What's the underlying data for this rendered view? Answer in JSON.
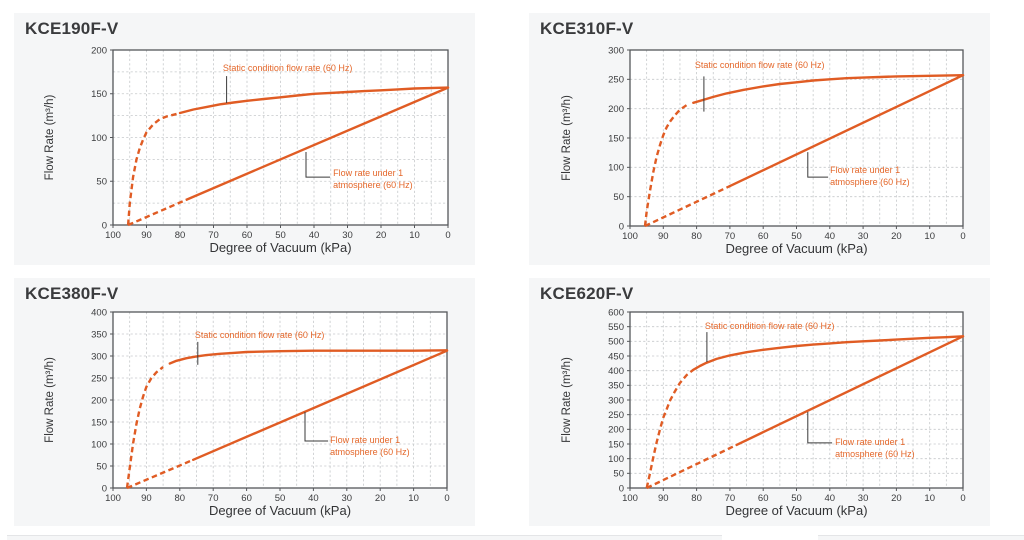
{
  "colors": {
    "curve": "#e05c24",
    "annotation_text": "#e4672a",
    "leader": "#3a3a3a",
    "grid": "#c6c9cb",
    "axis": "#55575a",
    "text": "#3b3c3e",
    "panel_bg": "#f5f6f7",
    "plot_bg": "#ffffff"
  },
  "chart_data": [
    {
      "title": "KCE190F-V",
      "type": "line",
      "xlabel": "Degree of Vacuum (kPa)",
      "ylabel": "Flow Rate (m³/h)",
      "x_axis_reversed": true,
      "xlim": [
        0,
        100
      ],
      "x_ticks": [
        100,
        90,
        80,
        70,
        60,
        50,
        40,
        30,
        20,
        10,
        0
      ],
      "x_grid_step": 5,
      "ylim": [
        0,
        200
      ],
      "y_ticks": [
        0,
        50,
        100,
        150,
        200
      ],
      "y_grid_step": 25,
      "grid": true,
      "series": [
        {
          "name": "Static condition flow rate (60 Hz)",
          "line_style": "dashed-then-solid",
          "dashed_above_kpa": 80,
          "points": [
            [
              95.5,
              0
            ],
            [
              95,
              25
            ],
            [
              94,
              55
            ],
            [
              93,
              75
            ],
            [
              92,
              88
            ],
            [
              91,
              98
            ],
            [
              90,
              106
            ],
            [
              88,
              115
            ],
            [
              86,
              121
            ],
            [
              84,
              124
            ],
            [
              82,
              126
            ],
            [
              80,
              128
            ],
            [
              76,
              132
            ],
            [
              72,
              135
            ],
            [
              68,
              138
            ],
            [
              64,
              140
            ],
            [
              60,
              142
            ],
            [
              55,
              144
            ],
            [
              50,
              146
            ],
            [
              45,
              148
            ],
            [
              40,
              150
            ],
            [
              35,
              151
            ],
            [
              30,
              152
            ],
            [
              25,
              153
            ],
            [
              20,
              154
            ],
            [
              15,
              155
            ],
            [
              10,
              156
            ],
            [
              0,
              157
            ]
          ]
        },
        {
          "name": "Flow rate under 1 atmosphere (60 Hz)",
          "line_style": "dashed-then-solid",
          "dashed_above_kpa": 78,
          "points": [
            [
              95.5,
              0
            ],
            [
              78,
              29
            ],
            [
              0,
              157
            ]
          ]
        }
      ],
      "annotations": [
        {
          "lines": [
            "Static condition flow rate (60 Hz)"
          ],
          "tx": 0.328,
          "ty": 0.074,
          "leader": [
            [
              0.339,
              0.149
            ],
            [
              0.339,
              0.303
            ]
          ]
        },
        {
          "lines": [
            "Flow rate under 1",
            "atmosphere (60 Hz)"
          ],
          "tx": 0.657,
          "ty": 0.674,
          "leader": [
            [
              0.576,
              0.583
            ],
            [
              0.576,
              0.726
            ],
            [
              0.648,
              0.726
            ]
          ]
        }
      ]
    },
    {
      "title": "KCE310F-V",
      "type": "line",
      "xlabel": "Degree of Vacuum (kPa)",
      "ylabel": "Flow Rate (m³/h)",
      "x_axis_reversed": true,
      "xlim": [
        0,
        100
      ],
      "x_ticks": [
        100,
        90,
        80,
        70,
        60,
        50,
        40,
        30,
        20,
        10,
        0
      ],
      "x_grid_step": 5,
      "ylim": [
        0,
        300
      ],
      "y_ticks": [
        0,
        50,
        100,
        150,
        200,
        250,
        300
      ],
      "y_grid_step": 50,
      "grid": true,
      "series": [
        {
          "name": "Static condition flow rate (60 Hz)",
          "line_style": "dashed-then-solid",
          "dashed_above_kpa": 82,
          "points": [
            [
              95.5,
              0
            ],
            [
              95,
              25
            ],
            [
              94,
              60
            ],
            [
              93,
              92
            ],
            [
              92,
              118
            ],
            [
              91,
              138
            ],
            [
              90,
              155
            ],
            [
              89,
              168
            ],
            [
              88,
              178
            ],
            [
              86.5,
              189
            ],
            [
              85,
              198
            ],
            [
              83,
              206
            ],
            [
              81,
              210
            ],
            [
              78,
              215
            ],
            [
              75,
              220
            ],
            [
              71,
              226
            ],
            [
              66,
              232
            ],
            [
              60,
              238
            ],
            [
              55,
              242
            ],
            [
              50,
              245
            ],
            [
              45,
              248
            ],
            [
              40,
              250
            ],
            [
              35,
              252
            ],
            [
              30,
              253
            ],
            [
              25,
              254
            ],
            [
              20,
              255
            ],
            [
              10,
              256
            ],
            [
              0,
              257
            ]
          ]
        },
        {
          "name": "Flow rate under 1 atmosphere (60 Hz)",
          "line_style": "dashed-then-solid",
          "dashed_above_kpa": 70,
          "points": [
            [
              95.5,
              0
            ],
            [
              70,
              68
            ],
            [
              0,
              257
            ]
          ]
        }
      ],
      "annotations": [
        {
          "lines": [
            "Static condition flow rate (60 Hz)"
          ],
          "tx": 0.195,
          "ty": 0.057,
          "leader": [
            [
              0.222,
              0.15
            ],
            [
              0.222,
              0.35
            ]
          ]
        },
        {
          "lines": [
            "Flow rate under 1",
            "atmosphere (60 Hz)"
          ],
          "tx": 0.601,
          "ty": 0.653,
          "leader": [
            [
              0.534,
              0.58
            ],
            [
              0.534,
              0.722
            ],
            [
              0.595,
              0.722
            ]
          ]
        }
      ]
    },
    {
      "title": "KCE380F-V",
      "type": "line",
      "xlabel": "Degree of Vacuum (kPa)",
      "ylabel": "Flow Rate (m³/h)",
      "x_axis_reversed": true,
      "xlim": [
        0,
        100
      ],
      "x_ticks": [
        100,
        90,
        80,
        70,
        60,
        50,
        40,
        30,
        20,
        10,
        0
      ],
      "x_grid_step": 5,
      "ylim": [
        0,
        400
      ],
      "y_ticks": [
        0,
        50,
        100,
        150,
        200,
        250,
        300,
        350,
        400
      ],
      "y_grid_step": 50,
      "grid": true,
      "series": [
        {
          "name": "Static condition flow rate (60 Hz)",
          "line_style": "dashed-then-solid",
          "dashed_above_kpa": 84,
          "points": [
            [
              95.8,
              0
            ],
            [
              95,
              45
            ],
            [
              94,
              100
            ],
            [
              93,
              145
            ],
            [
              92,
              180
            ],
            [
              91,
              208
            ],
            [
              90,
              230
            ],
            [
              88.5,
              250
            ],
            [
              87,
              263
            ],
            [
              85,
              275
            ],
            [
              83,
              283
            ],
            [
              81,
              289
            ],
            [
              78,
              295
            ],
            [
              75,
              299
            ],
            [
              72,
              302
            ],
            [
              68,
              305
            ],
            [
              64,
              307
            ],
            [
              60,
              309
            ],
            [
              55,
              310
            ],
            [
              50,
              311
            ],
            [
              40,
              312
            ],
            [
              30,
              312
            ],
            [
              20,
              312
            ],
            [
              10,
              312
            ],
            [
              0,
              313
            ]
          ]
        },
        {
          "name": "Flow rate under 1 atmosphere (60 Hz)",
          "line_style": "dashed-then-solid",
          "dashed_above_kpa": 76,
          "points": [
            [
              95.8,
              0
            ],
            [
              76,
              64
            ],
            [
              0,
              312
            ]
          ]
        }
      ],
      "annotations": [
        {
          "lines": [
            "Static condition flow rate (60 Hz)"
          ],
          "tx": 0.245,
          "ty": 0.102,
          "leader": [
            [
              0.254,
              0.17
            ],
            [
              0.254,
              0.3
            ]
          ]
        },
        {
          "lines": [
            "Flow rate under 1",
            "atmosphere (60 Hz)"
          ],
          "tx": 0.65,
          "ty": 0.699,
          "leader": [
            [
              0.575,
              0.568
            ],
            [
              0.575,
              0.733
            ],
            [
              0.644,
              0.733
            ]
          ]
        }
      ]
    },
    {
      "title": "KCE620F-V",
      "type": "line",
      "xlabel": "Degree of Vacuum (kPa)",
      "ylabel": "Flow Rate (m³/h)",
      "x_axis_reversed": true,
      "xlim": [
        0,
        100
      ],
      "x_ticks": [
        100,
        90,
        80,
        70,
        60,
        50,
        40,
        30,
        20,
        10,
        0
      ],
      "x_grid_step": 5,
      "ylim": [
        0,
        600
      ],
      "y_ticks": [
        0,
        50,
        100,
        150,
        200,
        250,
        300,
        350,
        400,
        450,
        500,
        550,
        600
      ],
      "y_grid_step": 50,
      "grid": true,
      "series": [
        {
          "name": "Static condition flow rate (60 Hz)",
          "line_style": "dashed-then-solid",
          "dashed_above_kpa": 81,
          "points": [
            [
              95,
              0
            ],
            [
              94,
              50
            ],
            [
              93,
              105
            ],
            [
              92,
              155
            ],
            [
              91,
              200
            ],
            [
              90,
              240
            ],
            [
              89,
              268
            ],
            [
              88,
              298
            ],
            [
              86.5,
              330
            ],
            [
              85,
              358
            ],
            [
              83,
              385
            ],
            [
              81,
              403
            ],
            [
              79,
              416
            ],
            [
              77,
              427
            ],
            [
              74,
              440
            ],
            [
              70,
              452
            ],
            [
              65,
              463
            ],
            [
              60,
              471
            ],
            [
              55,
              478
            ],
            [
              50,
              484
            ],
            [
              45,
              489
            ],
            [
              40,
              493
            ],
            [
              35,
              497
            ],
            [
              30,
              500
            ],
            [
              25,
              503
            ],
            [
              20,
              506
            ],
            [
              15,
              509
            ],
            [
              10,
              512
            ],
            [
              5,
              514
            ],
            [
              0,
              517
            ]
          ]
        },
        {
          "name": "Flow rate under 1 atmosphere (60 Hz)",
          "line_style": "dashed-then-solid",
          "dashed_above_kpa": 68,
          "points": [
            [
              95,
              0
            ],
            [
              68,
              147
            ],
            [
              0,
              517
            ]
          ]
        }
      ],
      "annotations": [
        {
          "lines": [
            "Static condition flow rate (60 Hz)"
          ],
          "tx": 0.225,
          "ty": 0.051,
          "leader": [
            [
              0.231,
              0.114
            ],
            [
              0.231,
              0.284
            ]
          ]
        },
        {
          "lines": [
            "Flow rate under 1",
            "atmosphere (60 Hz)"
          ],
          "tx": 0.616,
          "ty": 0.71,
          "leader": [
            [
              0.534,
              0.568
            ],
            [
              0.534,
              0.744
            ],
            [
              0.607,
              0.744
            ]
          ]
        }
      ]
    }
  ]
}
